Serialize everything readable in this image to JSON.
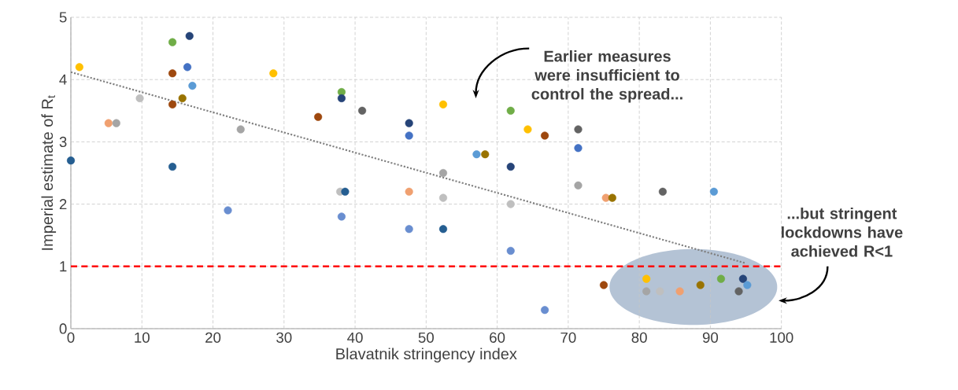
{
  "chart_data": {
    "type": "scatter",
    "xlabel": "Blavatnik stringency index",
    "ylabel": "Imperial estimate of R$_{t}$",
    "annotations": [
      "Earlier measures were insufficient to control the spread...",
      "...but stringent lockdowns have achieved R<1"
    ],
    "xlim": [
      0,
      100
    ],
    "ylim": [
      0,
      5
    ],
    "xticks": [
      0,
      10,
      20,
      30,
      40,
      50,
      60,
      70,
      80,
      90,
      100
    ],
    "yticks": [
      0,
      1,
      2,
      3,
      4,
      5
    ],
    "grid": true,
    "series": [
      {
        "type": "scatter",
        "marker": "circle",
        "x": [
          0.0,
          1.2,
          5.3,
          6.4,
          9.7,
          14.3,
          14.3,
          14.3,
          14.3,
          15.7,
          16.4,
          16.7,
          17.1,
          22.1,
          23.9,
          28.5,
          34.8,
          38.1,
          38.1,
          37.9,
          38.6,
          38.1,
          41.0,
          47.6,
          47.6,
          47.6,
          47.6,
          52.4,
          52.4,
          52.4,
          52.4,
          57.1,
          58.3,
          61.9,
          61.9,
          61.9,
          61.9,
          64.3,
          66.7,
          66.7,
          71.4,
          71.4,
          71.4,
          75.0,
          75.3,
          76.2,
          81.0,
          81.0,
          82.9,
          83.3,
          85.7,
          88.6,
          90.5,
          91.5,
          94.0,
          94.6,
          95.2
        ],
        "values": [
          2.7,
          4.2,
          3.3,
          3.3,
          3.7,
          4.6,
          4.1,
          3.6,
          2.6,
          3.7,
          4.2,
          4.7,
          3.9,
          1.9,
          3.2,
          4.1,
          3.4,
          3.8,
          3.7,
          2.2,
          2.2,
          1.8,
          3.5,
          3.3,
          3.1,
          2.2,
          1.6,
          3.6,
          2.5,
          2.1,
          1.6,
          2.8,
          2.8,
          3.5,
          2.6,
          2.0,
          1.25,
          3.2,
          3.1,
          0.3,
          3.2,
          2.9,
          2.3,
          0.7,
          2.1,
          2.1,
          0.8,
          0.6,
          0.6,
          2.2,
          0.6,
          0.7,
          2.2,
          0.8,
          0.6,
          0.8,
          0.7
        ],
        "colors": [
          "#255e91",
          "#ffc000",
          "#f0a070",
          "#a5a5a5",
          "#bfbfbf",
          "#70ad47",
          "#9e480e",
          "#9e480e",
          "#255e91",
          "#997300",
          "#4472c4",
          "#264478",
          "#5b9bd5",
          "#698ed0",
          "#a5a5a5",
          "#ffc000",
          "#9e480e",
          "#70ad47",
          "#264478",
          "#bfbfbf",
          "#255e91",
          "#698ed0",
          "#636363",
          "#264478",
          "#4472c4",
          "#f0a070",
          "#698ed0",
          "#ffc000",
          "#a5a5a5",
          "#bfbfbf",
          "#255e91",
          "#5b9bd5",
          "#997300",
          "#70ad47",
          "#264478",
          "#bfbfbf",
          "#698ed0",
          "#ffc000",
          "#9e480e",
          "#698ed0",
          "#636363",
          "#4472c4",
          "#a5a5a5",
          "#9e480e",
          "#f0a070",
          "#997300",
          "#ffc000",
          "#a5a5a5",
          "#bfbfbf",
          "#636363",
          "#f0a070",
          "#997300",
          "#5b9bd5",
          "#70ad47",
          "#636363",
          "#264478",
          "#5b9bd5"
        ]
      },
      {
        "type": "line",
        "x": [
          0,
          95
        ],
        "values": [
          4.12,
          1.05
        ],
        "color": "#7f7f7f",
        "line_style": "dotted",
        "marker": "none"
      }
    ],
    "ref_lines": [
      {
        "axis": "y",
        "value": 1,
        "color": "#ff0000",
        "line_style": "dashed"
      }
    ]
  }
}
